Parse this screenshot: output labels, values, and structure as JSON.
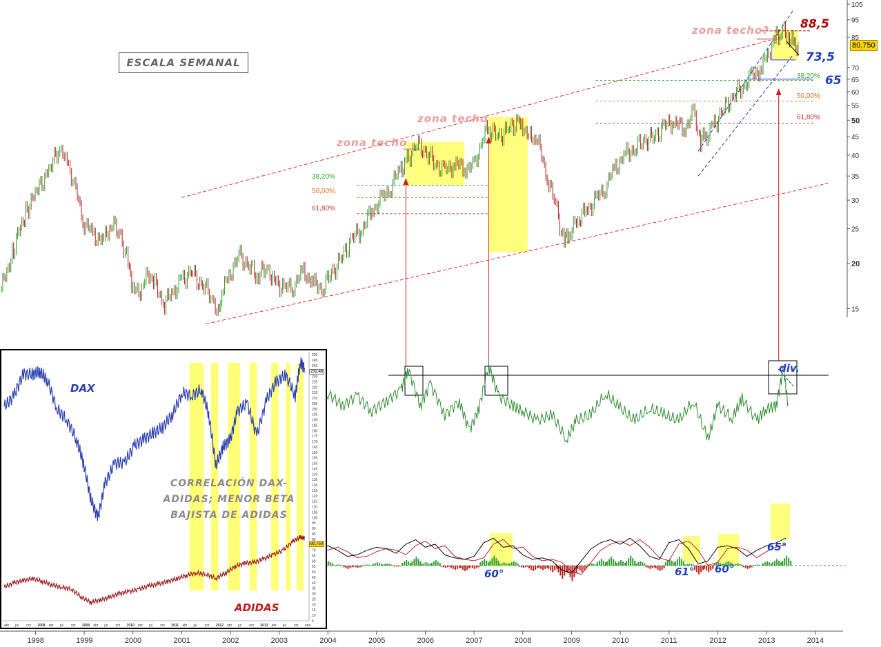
{
  "header": {
    "scale_label": "ESCALA SEMANAL"
  },
  "annotations": {
    "zona_techo_1": "zona techo",
    "zona_techo_2": "zona techo",
    "zona_techo_3": "zona techo?",
    "level_high": "88,5",
    "level_mid": "73,5",
    "level_low": "65",
    "price_tag": "80,750",
    "div_label": "div.",
    "angles": [
      "60°",
      "61°",
      "60°",
      "65°"
    ],
    "fib_left": [
      "38,20%",
      "50,00%",
      "61,80%"
    ],
    "fib_right": [
      "38,20%",
      "50,00%",
      "61,80%"
    ]
  },
  "inset": {
    "dax_label": "DAX",
    "adidas_label": "ADIDAS",
    "correlation_text": [
      "CORRELACIÓN DAX-",
      "ADIDAS; MENOR BETA",
      "BAJISTA DE ADIDAS"
    ],
    "axis_labels": [
      "250",
      "245",
      "240",
      "235",
      "230",
      "225",
      "220",
      "215",
      "210",
      "205",
      "200",
      "195",
      "190",
      "185",
      "180",
      "175",
      "170",
      "165",
      "160",
      "155",
      "150",
      "145",
      "140",
      "135",
      "130",
      "125",
      "120",
      "115",
      "110",
      "105",
      "100",
      "95",
      "90",
      "85",
      "80",
      "75",
      "70",
      "65",
      "60",
      "55",
      "50",
      "45",
      "40",
      "35",
      "30",
      "25",
      "20",
      "15",
      "10",
      "5"
    ],
    "price_tag": "80,750",
    "dax_tag": "232,46",
    "month_labels": [
      "abr",
      "jul",
      "oct",
      "2008",
      "abr",
      "jul",
      "oct",
      "2009",
      "abr",
      "jul",
      "oct",
      "2010",
      "abr",
      "jul",
      "oct",
      "2011",
      "abr",
      "jul",
      "oct",
      "2012",
      "abr",
      "jul",
      "oct",
      "2013",
      "abr",
      "jul",
      "oct",
      "ene"
    ]
  },
  "colors": {
    "up_bar": "#2e9e2e",
    "down_bar": "#b22222",
    "highlight": "#ffff66",
    "channel": "#e03030",
    "fib_green": "#2eaa2e",
    "fib_orange": "#e07020",
    "fib_red": "#c03030",
    "oscillator": "#2e8b2e",
    "dax_line": "#2b3fb0",
    "adidas_line": "#9b1a1a",
    "blue_channel": "#2030c0"
  },
  "chart_data": [
    {
      "type": "line",
      "title": "",
      "xlabel": "",
      "ylabel": "",
      "y_scale": "log",
      "ylim": [
        12,
        105
      ],
      "x_range": [
        1997.3,
        2014.6
      ],
      "x_ticks": [
        "1998",
        "1999",
        "2000",
        "2001",
        "2002",
        "2003",
        "2004",
        "2005",
        "2006",
        "2007",
        "2008",
        "2009",
        "2010",
        "2011",
        "2012",
        "2013",
        "2014"
      ],
      "y_ticks": [
        "105",
        "95",
        "85",
        "70",
        "65",
        "60",
        "55",
        "50",
        "45",
        "40",
        "35",
        "30",
        "25",
        "20",
        "15"
      ],
      "last_value": 80.75,
      "series": [
        {
          "x": [
            1997.3,
            1997.55,
            1997.8,
            1998.05,
            1998.3,
            1998.5,
            1998.62,
            1998.8,
            1999.0,
            1999.2,
            1999.4,
            1999.55,
            1999.75,
            1999.9,
            2000.0,
            2000.15,
            2000.3,
            2000.45,
            2000.65,
            2000.85,
            2001.0,
            2001.2,
            2001.4,
            2001.6,
            2001.75,
            2001.85,
            2002.0,
            2002.2,
            2002.4,
            2002.55,
            2002.75,
            2002.9,
            2003.1,
            2003.3,
            2003.5,
            2003.7,
            2003.9,
            2004.1,
            2004.3,
            2004.5,
            2004.7,
            2004.9,
            2005.1,
            2005.3,
            2005.5,
            2005.6,
            2005.8,
            2006.0,
            2006.2,
            2006.4,
            2006.6,
            2006.8,
            2007.0,
            2007.2,
            2007.3,
            2007.5,
            2007.7,
            2007.9,
            2008.0,
            2008.15,
            2008.3,
            2008.5,
            2008.7,
            2008.85,
            2008.95,
            2009.1,
            2009.3,
            2009.5,
            2009.7,
            2009.9,
            2010.1,
            2010.3,
            2010.5,
            2010.7,
            2010.9,
            2011.1,
            2011.3,
            2011.5,
            2011.65,
            2011.75,
            2011.9,
            2012.1,
            2012.3,
            2012.5,
            2012.7,
            2012.9,
            2013.05,
            2013.2,
            2013.3,
            2013.45,
            2013.55,
            2013.65
          ],
          "y": [
            17,
            22,
            28,
            32,
            37,
            42,
            40,
            33,
            26,
            24,
            23,
            26,
            24,
            20,
            17,
            16.5,
            19,
            17.5,
            15.5,
            17,
            18,
            19,
            17.5,
            16.5,
            14.5,
            17,
            19,
            21,
            19.5,
            18.5,
            19.5,
            18,
            17,
            17.5,
            19,
            17.5,
            17.2,
            19,
            21,
            23.5,
            25,
            28,
            30,
            33,
            37,
            38,
            43,
            41,
            38,
            36,
            38,
            37,
            37,
            46,
            47,
            45,
            47,
            50,
            48,
            45,
            44,
            35,
            28,
            23,
            24,
            26,
            28,
            30,
            33,
            37,
            40,
            42,
            44,
            45,
            48,
            50,
            47,
            52,
            44,
            45,
            48,
            53,
            58,
            62,
            66,
            70,
            78,
            85,
            88.5,
            86,
            82,
            80.75
          ],
          "name": ""
        }
      ],
      "channel_lines": [
        {
          "name": "",
          "from": [
            2001.0,
            30.5
          ],
          "to": [
            2013.3,
            85
          ]
        },
        {
          "name": "",
          "from": [
            2001.5,
            13.6
          ],
          "to": [
            2014.3,
            33.5
          ]
        }
      ],
      "fibonacci_left": {
        "levels": [
          38.2,
          50.0,
          61.8
        ],
        "values": [
          33,
          30.5,
          27.5
        ]
      },
      "fibonacci_right": {
        "levels": [
          38.2,
          50.0,
          61.8
        ],
        "values": [
          64.5,
          56.5,
          49
        ]
      },
      "resistance_zones": [
        {
          "x": [
            2005.6,
            2006.8
          ],
          "y": [
            33,
            43.5
          ]
        },
        {
          "x": [
            2007.3,
            2008.1
          ],
          "y": [
            21.5,
            51
          ]
        },
        {
          "x": [
            2013.15,
            2013.65
          ],
          "y": [
            73.5,
            89
          ]
        }
      ],
      "levels": [
        88.5,
        73.5,
        65
      ]
    },
    {
      "type": "line",
      "title": "",
      "xlabel": "",
      "ylabel": "",
      "x_range": [
        2003.7,
        2013.7
      ],
      "series": [
        {
          "name": "",
          "x": [
            2003.7,
            2004.0,
            2004.3,
            2004.6,
            2004.9,
            2005.2,
            2005.5,
            2005.65,
            2005.9,
            2006.1,
            2006.4,
            2006.7,
            2006.9,
            2007.1,
            2007.3,
            2007.5,
            2007.8,
            2008.0,
            2008.3,
            2008.6,
            2008.9,
            2009.1,
            2009.4,
            2009.7,
            2010.0,
            2010.3,
            2010.6,
            2010.9,
            2011.2,
            2011.5,
            2011.8,
            2012.0,
            2012.3,
            2012.5,
            2012.8,
            2013.0,
            2013.2,
            2013.35,
            2013.45
          ],
          "y": [
            0.55,
            0.72,
            0.62,
            0.7,
            0.58,
            0.66,
            0.75,
            0.92,
            0.62,
            0.8,
            0.55,
            0.66,
            0.42,
            0.6,
            0.95,
            0.7,
            0.62,
            0.58,
            0.5,
            0.55,
            0.35,
            0.5,
            0.55,
            0.72,
            0.6,
            0.5,
            0.6,
            0.55,
            0.5,
            0.66,
            0.35,
            0.62,
            0.52,
            0.68,
            0.5,
            0.6,
            0.62,
            0.93,
            0.6
          ]
        }
      ],
      "reference_line": 0.92,
      "ylim": [
        0,
        1
      ]
    },
    {
      "type": "bar",
      "title": "",
      "xlabel": "",
      "ylabel": "",
      "x_range": [
        2003.7,
        2013.7
      ],
      "series": [
        {
          "name": "",
          "x": [
            2003.8,
            2004.0,
            2004.2,
            2004.4,
            2004.6,
            2004.8,
            2005.0,
            2005.2,
            2005.4,
            2005.6,
            2005.8,
            2006.0,
            2006.2,
            2006.4,
            2006.6,
            2006.8,
            2007.0,
            2007.2,
            2007.4,
            2007.6,
            2007.8,
            2008.0,
            2008.2,
            2008.4,
            2008.6,
            2008.8,
            2009.0,
            2009.2,
            2009.4,
            2009.6,
            2009.8,
            2010.0,
            2010.2,
            2010.4,
            2010.6,
            2010.8,
            2011.0,
            2011.2,
            2011.4,
            2011.6,
            2011.8,
            2012.0,
            2012.2,
            2012.4,
            2012.6,
            2012.8,
            2013.0,
            2013.2,
            2013.4
          ],
          "y": [
            0.2,
            0.4,
            0.1,
            -0.3,
            -0.2,
            0.1,
            0.3,
            0.2,
            -0.1,
            0.5,
            0.8,
            0.3,
            0.5,
            -0.2,
            -0.4,
            -0.5,
            -0.3,
            0.6,
            0.9,
            0.3,
            0.4,
            -0.2,
            -0.5,
            -0.4,
            -0.6,
            -1.2,
            -1.4,
            -0.6,
            0.2,
            0.6,
            0.8,
            0.5,
            0.9,
            0.4,
            -0.3,
            -0.5,
            0.6,
            0.8,
            0.2,
            -0.8,
            -0.6,
            0.3,
            0.4,
            0.2,
            -0.3,
            0.1,
            0.4,
            0.6,
            0.9
          ]
        }
      ],
      "ylim": [
        -1.5,
        1.5
      ]
    },
    {
      "type": "line",
      "title": "",
      "xlabel": "",
      "ylabel": "",
      "y_ticks": [
        "250",
        "245",
        "240",
        "235",
        "230",
        "225",
        "220",
        "215",
        "210",
        "205",
        "200",
        "195",
        "190",
        "185",
        "180",
        "175",
        "170",
        "165",
        "160",
        "155",
        "150",
        "145",
        "140",
        "135",
        "130",
        "125",
        "120",
        "115",
        "110",
        "105",
        "100",
        "95",
        "90",
        "85",
        "80",
        "75",
        "70",
        "65",
        "60",
        "55",
        "50",
        "45",
        "40",
        "35",
        "30",
        "25",
        "20",
        "15",
        "10",
        "5"
      ],
      "ylim": [
        5,
        250
      ],
      "series": [
        {
          "name": "DAX",
          "x": [
            2007.2,
            2007.4,
            2007.6,
            2007.8,
            2007.95,
            2008.1,
            2008.3,
            2008.5,
            2008.7,
            2008.85,
            2009.0,
            2009.15,
            2009.3,
            2009.5,
            2009.7,
            2009.9,
            2010.1,
            2010.3,
            2010.5,
            2010.7,
            2010.9,
            2011.1,
            2011.3,
            2011.45,
            2011.6,
            2011.75,
            2011.9,
            2012.05,
            2012.25,
            2012.45,
            2012.65,
            2012.85,
            2013.05,
            2013.25,
            2013.35,
            2013.45
          ],
          "y": [
            202,
            212,
            232,
            232,
            234,
            226,
            200,
            190,
            172,
            150,
            117,
            100,
            132,
            150,
            150,
            166,
            172,
            178,
            183,
            195,
            215,
            212,
            218,
            195,
            148,
            165,
            172,
            198,
            205,
            175,
            208,
            225,
            231,
            212,
            242,
            238
          ]
        },
        {
          "name": "ADIDAS",
          "x": [
            2007.2,
            2007.4,
            2007.6,
            2007.8,
            2008.0,
            2008.2,
            2008.4,
            2008.6,
            2008.8,
            2009.0,
            2009.2,
            2009.4,
            2009.6,
            2009.8,
            2010.0,
            2010.2,
            2010.4,
            2010.6,
            2010.8,
            2011.0,
            2011.2,
            2011.4,
            2011.6,
            2011.8,
            2012.0,
            2012.2,
            2012.4,
            2012.6,
            2012.8,
            2013.0,
            2013.2,
            2013.35,
            2013.45
          ],
          "y": [
            36,
            40,
            42,
            44,
            41,
            38,
            36,
            34,
            27,
            22,
            24,
            27,
            30,
            32,
            34,
            37,
            39,
            41,
            44,
            47,
            49,
            48,
            44,
            49,
            55,
            58,
            59,
            62,
            66,
            70,
            78,
            82,
            80.75
          ]
        }
      ],
      "highlight_periods": [
        [
          2011.05,
          2011.35
        ],
        [
          2011.5,
          2011.65
        ],
        [
          2011.85,
          2012.1
        ],
        [
          2012.3,
          2012.45
        ],
        [
          2012.75,
          2012.9
        ],
        [
          2013.05,
          2013.15
        ],
        [
          2013.28,
          2013.42
        ]
      ]
    }
  ]
}
